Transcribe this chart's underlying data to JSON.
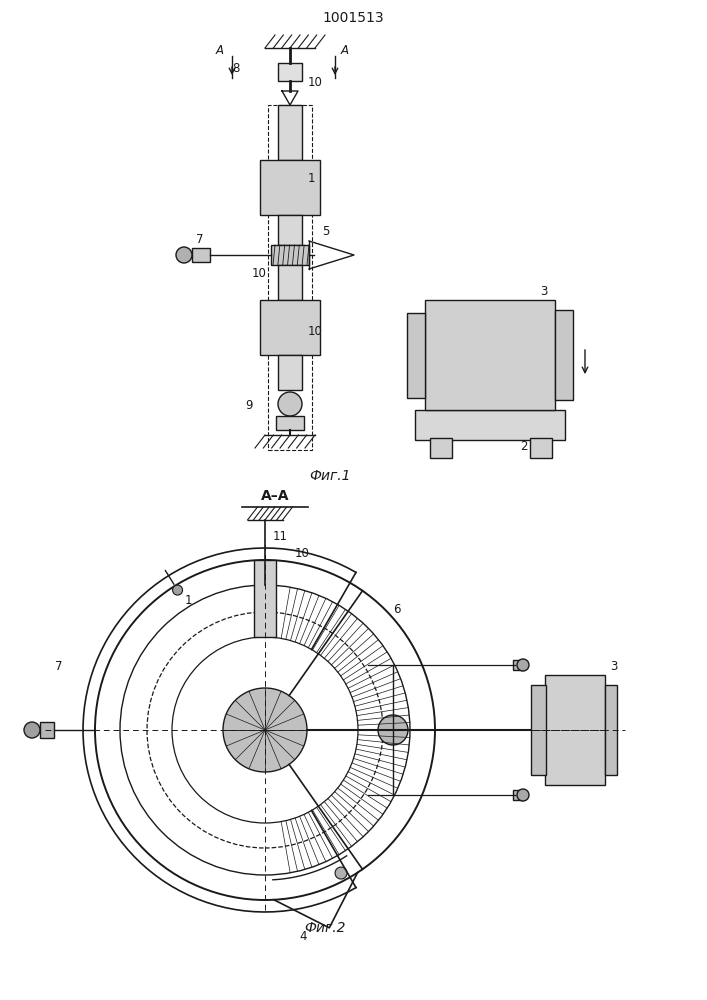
{
  "title": "1001513",
  "fig1_caption": "Фиг.1",
  "fig2_caption": "Фиг.2",
  "fig2_title": "А–А",
  "background_color": "#ffffff",
  "line_color": "#1a1a1a",
  "line_width": 1.0,
  "label_fontsize": 8.5,
  "title_fontsize": 10
}
